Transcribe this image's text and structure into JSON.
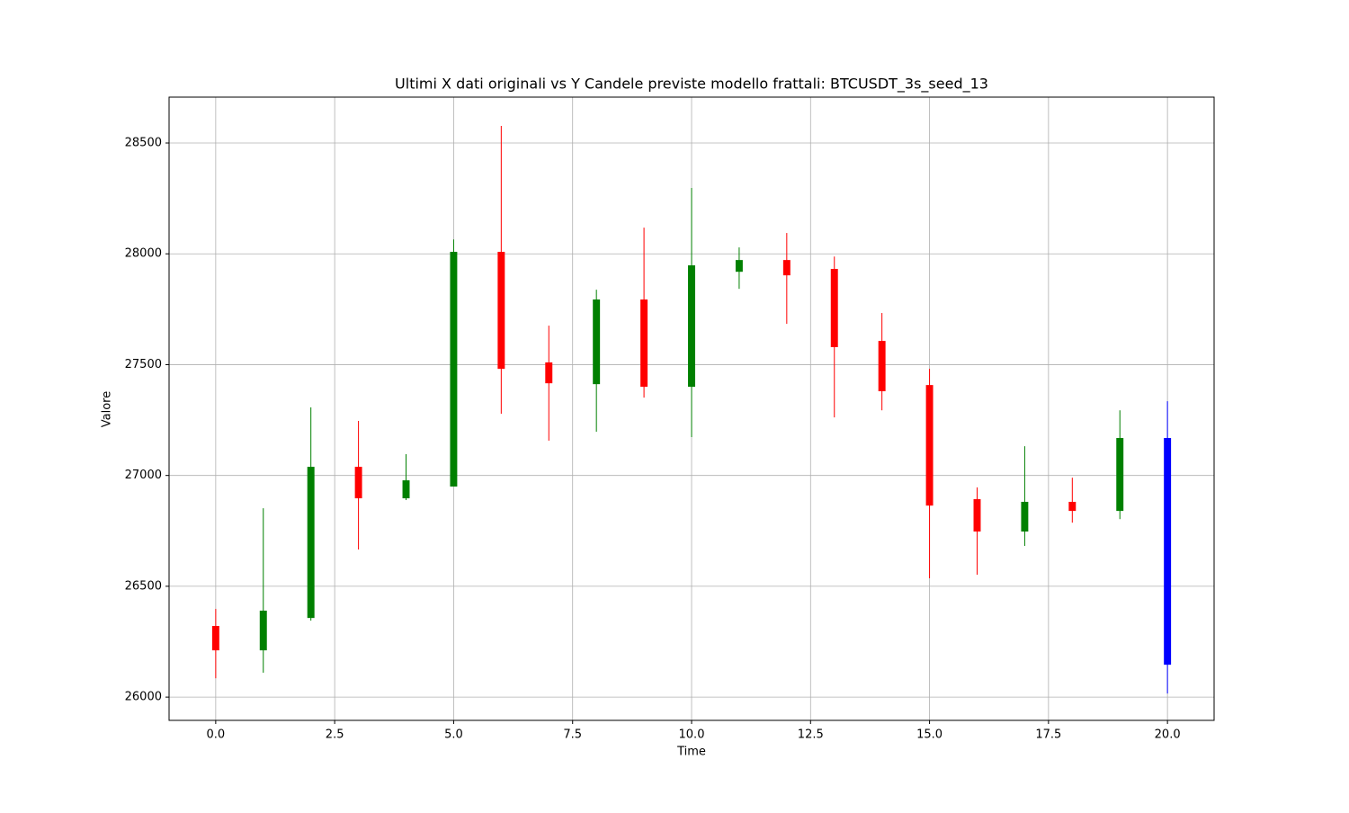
{
  "chart_data": {
    "type": "candlestick",
    "title": "Ultimi X dati originali vs Y Candele previste modello frattali: BTCUSDT_3s_seed_13",
    "xlabel": "Time",
    "ylabel": "Valore",
    "x": [
      0,
      1,
      2,
      3,
      4,
      5,
      6,
      7,
      8,
      9,
      10,
      11,
      12,
      13,
      14,
      15,
      16,
      17,
      18,
      19,
      20
    ],
    "open": [
      26321,
      26211,
      26357,
      27039,
      26897,
      26950,
      28009,
      27510,
      27412,
      27794,
      27400,
      27919,
      27972,
      27932,
      27607,
      27408,
      26893,
      26747,
      26881,
      26840,
      26146
    ],
    "high": [
      26398,
      26852,
      27307,
      27246,
      27096,
      28065,
      28577,
      27676,
      27838,
      28118,
      28297,
      28029,
      28094,
      27988,
      27733,
      27481,
      26946,
      27132,
      26990,
      27294,
      27335
    ],
    "low": [
      26085,
      26110,
      26345,
      26666,
      26889,
      26950,
      27278,
      27157,
      27197,
      27351,
      27173,
      27842,
      27684,
      27262,
      27294,
      26536,
      26552,
      26682,
      26787,
      26803,
      26016
    ],
    "close": [
      26211,
      26390,
      27039,
      26897,
      26978,
      28009,
      27481,
      27416,
      27794,
      27400,
      27948,
      27972,
      27903,
      27579,
      27380,
      26864,
      26747,
      26881,
      26840,
      27169,
      27169
    ],
    "colors": [
      "red",
      "green",
      "green",
      "red",
      "green",
      "green",
      "red",
      "red",
      "green",
      "red",
      "green",
      "green",
      "red",
      "red",
      "red",
      "red",
      "red",
      "green",
      "red",
      "green",
      "blue"
    ],
    "xlim": [
      -0.98,
      20.98
    ],
    "ylim": [
      25895,
      28707
    ],
    "xticks": [
      {
        "value": 0,
        "label": "0.0"
      },
      {
        "value": 2.5,
        "label": "2.5"
      },
      {
        "value": 5,
        "label": "5.0"
      },
      {
        "value": 7.5,
        "label": "7.5"
      },
      {
        "value": 10,
        "label": "10.0"
      },
      {
        "value": 12.5,
        "label": "12.5"
      },
      {
        "value": 15,
        "label": "15.0"
      },
      {
        "value": 17.5,
        "label": "17.5"
      },
      {
        "value": 20,
        "label": "20.0"
      }
    ],
    "yticks": [
      26000,
      26500,
      27000,
      27500,
      28000,
      28500
    ],
    "grid": true
  }
}
